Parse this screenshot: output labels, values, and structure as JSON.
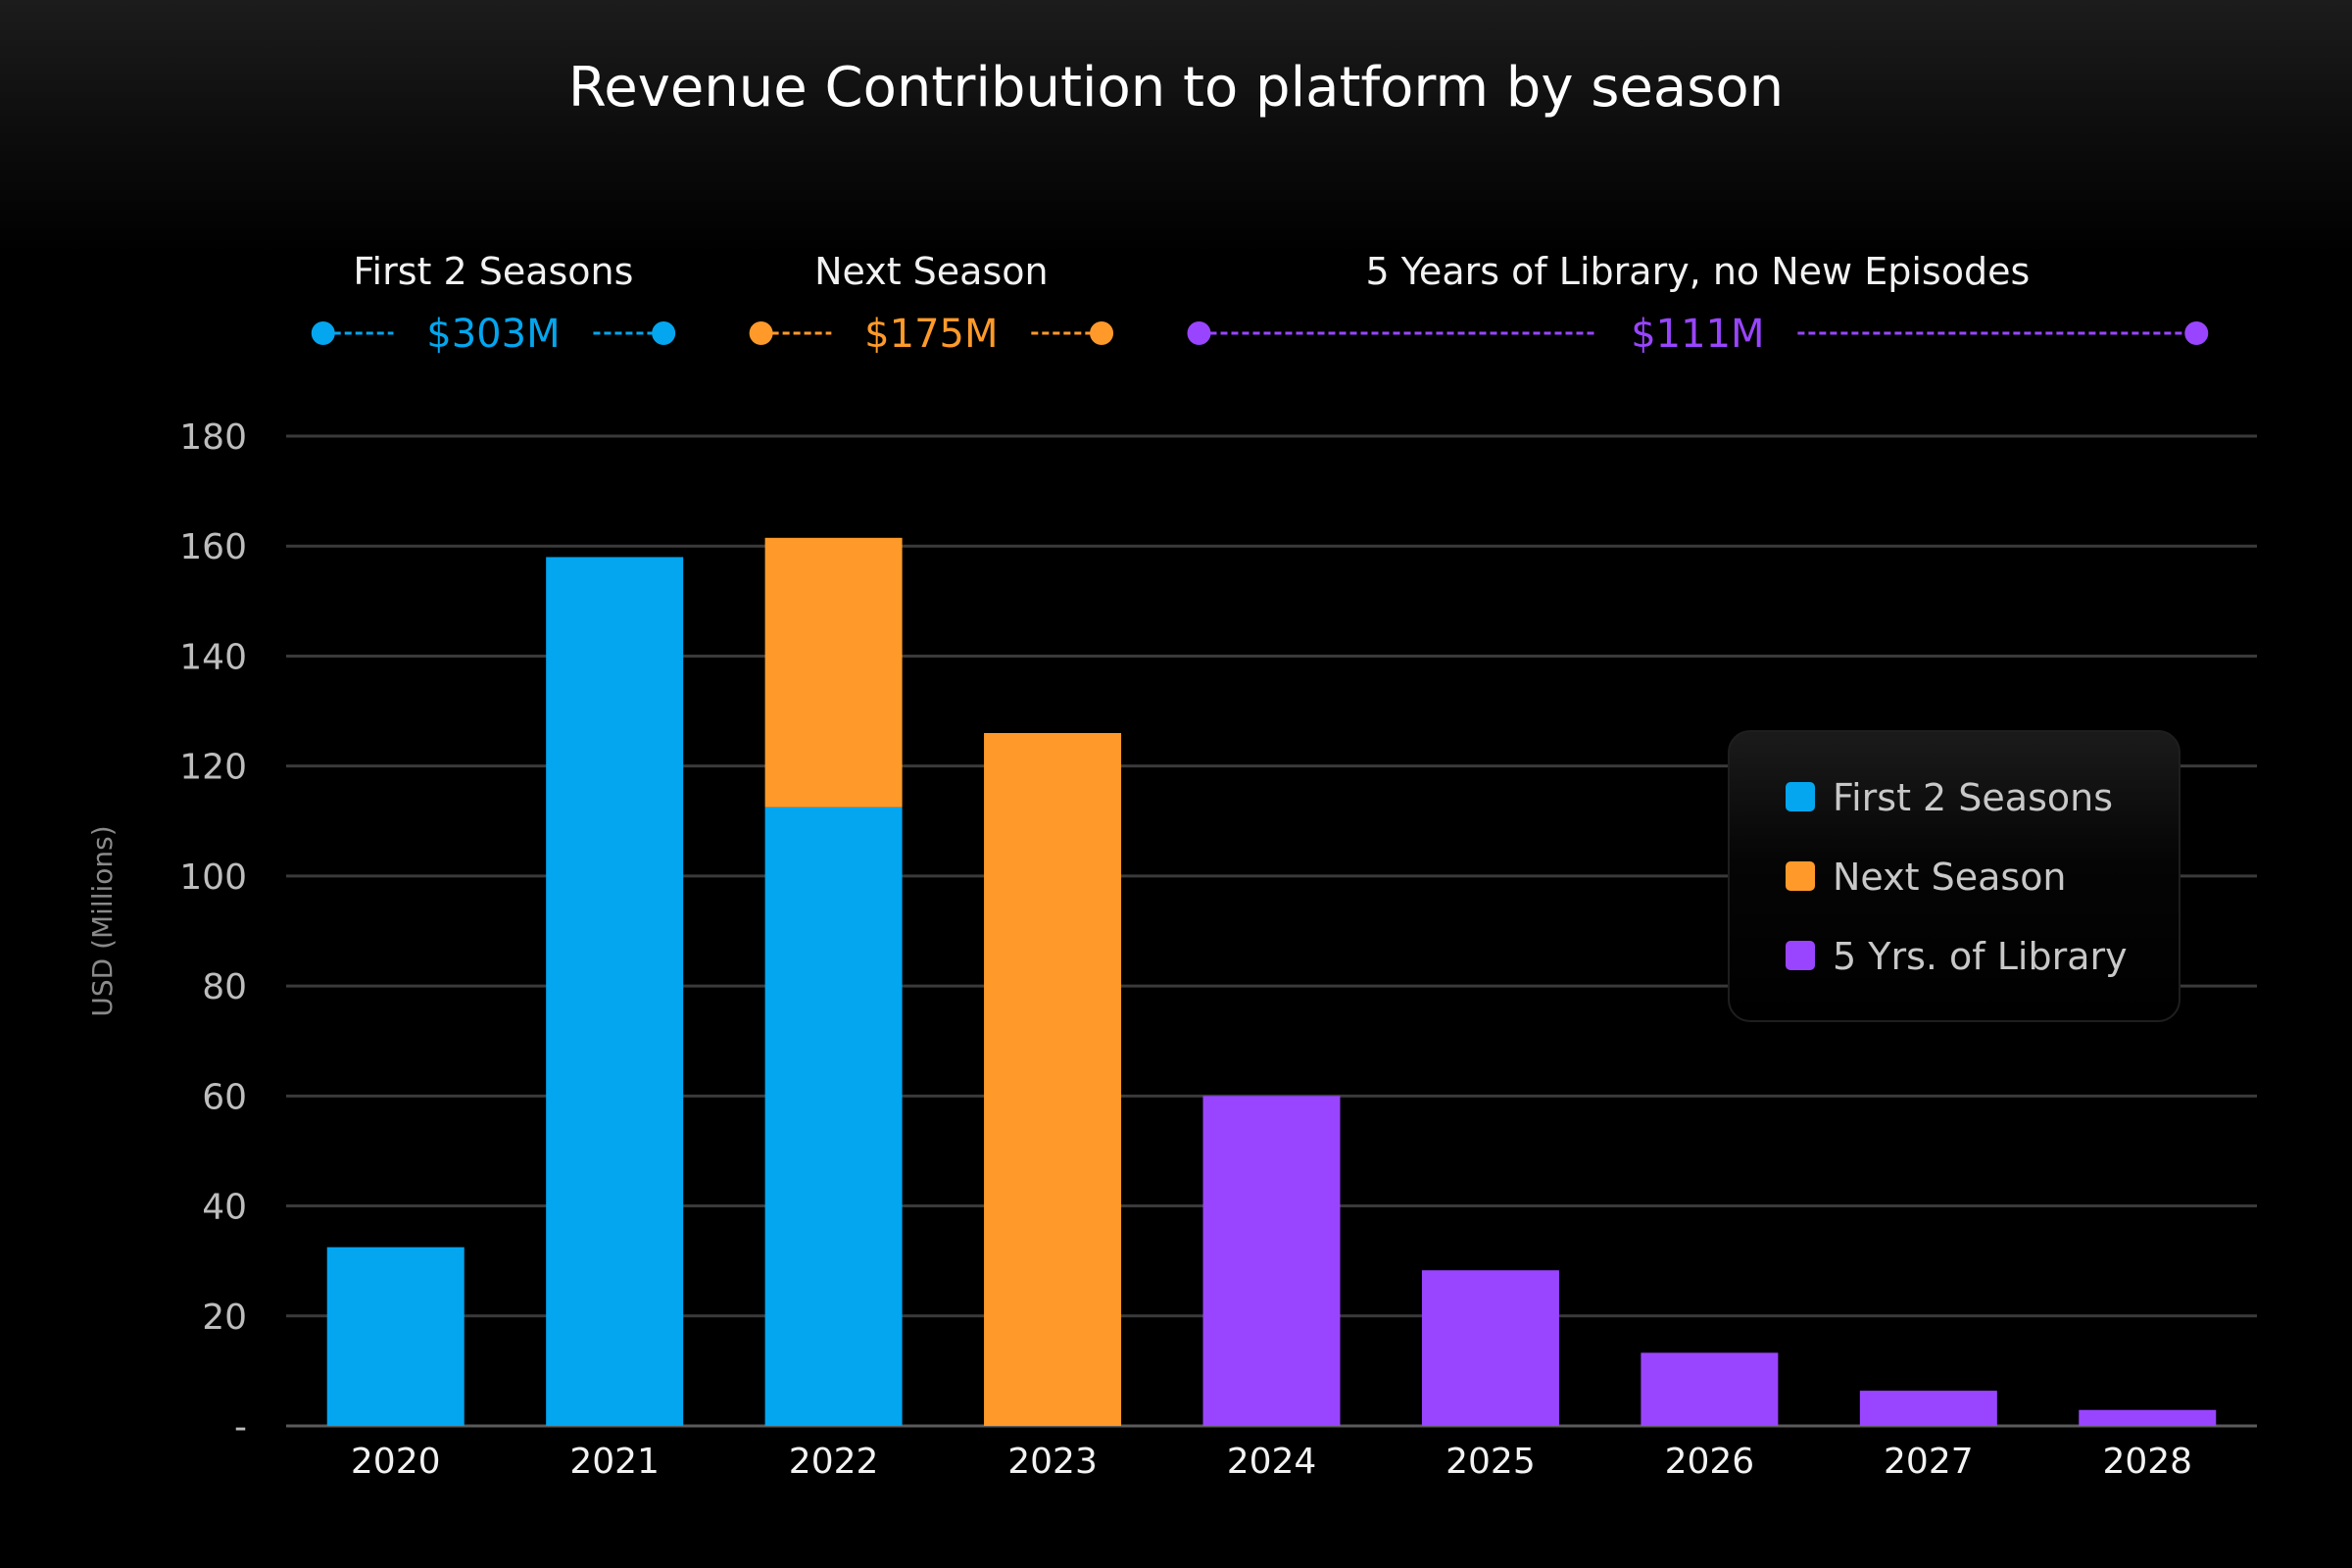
{
  "chart_data": {
    "type": "bar",
    "stacked": true,
    "title": "Revenue Contribution to platform by season",
    "xlabel": "",
    "ylabel": "USD (Millions)",
    "ylim": [
      0,
      180
    ],
    "yticks": [
      0,
      20,
      40,
      60,
      80,
      100,
      120,
      140,
      160,
      180
    ],
    "ytick_labels": [
      "-",
      "20",
      "40",
      "60",
      "80",
      "100",
      "120",
      "140",
      "160",
      "180"
    ],
    "grid": true,
    "categories": [
      "2020",
      "2021",
      "2022",
      "2023",
      "2024",
      "2025",
      "2026",
      "2027",
      "2028"
    ],
    "series": [
      {
        "name": "First 2 Seasons",
        "color": "#03a6ef",
        "values": [
          32.5,
          158,
          112.5,
          0,
          0,
          0,
          0,
          0,
          0
        ]
      },
      {
        "name": "Next Season",
        "color": "#ff9a2a",
        "values": [
          0,
          0,
          49,
          126,
          0,
          0,
          0,
          0,
          0
        ]
      },
      {
        "name": "5 Yrs. of Library",
        "color": "#9945ff",
        "values": [
          0,
          0,
          0,
          0,
          60,
          28.3,
          13.3,
          6.4,
          2.9
        ]
      }
    ],
    "legend": {
      "position": "right",
      "entries": [
        "First 2 Seasons",
        "Next Season",
        "5 Yrs. of Library"
      ]
    },
    "annotations": [
      {
        "label": "First 2 Seasons",
        "value": "$303M",
        "color": "#03a6ef",
        "span": [
          "2020",
          "2021"
        ]
      },
      {
        "label": "Next Season",
        "value": "$175M",
        "color": "#ff9a2a",
        "span": [
          "2022",
          "2023"
        ]
      },
      {
        "label": "5 Years of Library, no New Episodes",
        "value": "$111M",
        "color": "#9945ff",
        "span": [
          "2024",
          "2028"
        ]
      }
    ]
  }
}
